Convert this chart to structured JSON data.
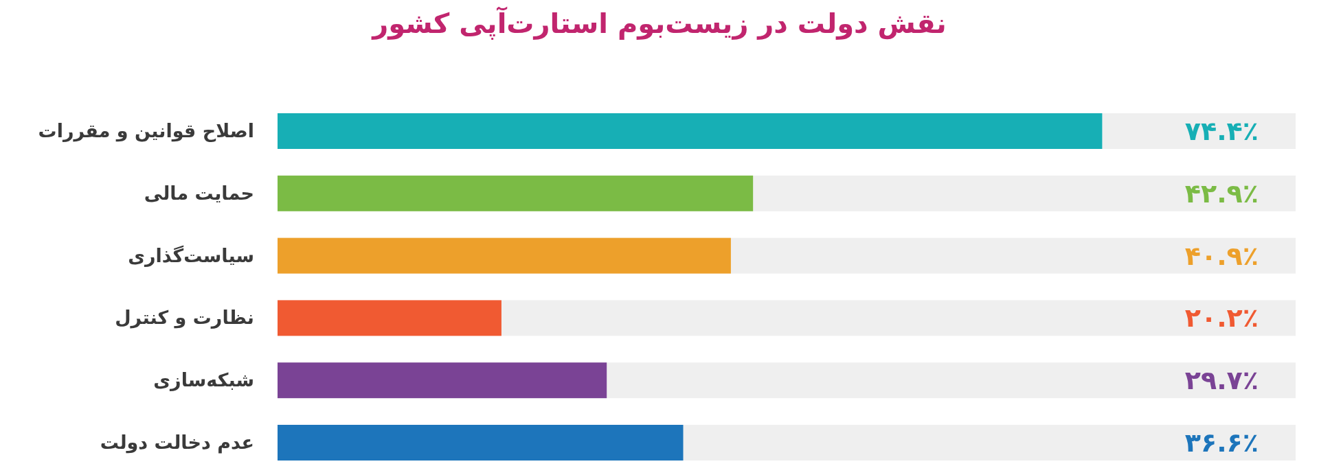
{
  "chart_data": {
    "type": "bar",
    "orientation": "horizontal",
    "title": "نقش دولت در زیست‌بوم استارت‌آپی کشور",
    "categories": [
      "اصلاح قوانین و مقررات",
      "حمایت مالی",
      "سیاست‌گذاری",
      "نظارت و کنترل",
      "شبکه‌سازی",
      "عدم دخالت دولت"
    ],
    "values": [
      74.4,
      42.9,
      40.9,
      20.2,
      29.7,
      36.6
    ],
    "value_labels": [
      "۷۴.۴٪",
      "۴۲.۹٪",
      "۴۰.۹٪",
      "۲۰.۲٪",
      "۲۹.۷٪",
      "۳۶.۶٪"
    ],
    "colors": [
      "#17afb5",
      "#7bbb45",
      "#eda02b",
      "#f05a32",
      "#7a4395",
      "#1d75bb"
    ]
  }
}
